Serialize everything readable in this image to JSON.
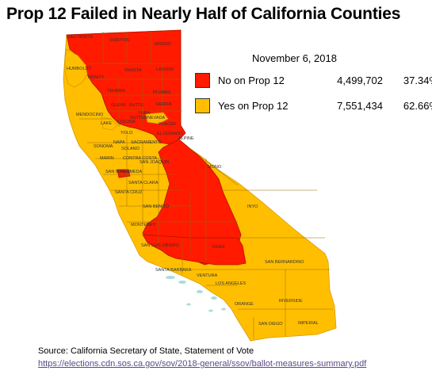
{
  "title": "Prop 12 Failed in Nearly Half of California Counties",
  "legend": {
    "date": "November 6, 2018",
    "no": {
      "label": "No on Prop 12",
      "count": "4,499,702",
      "percent": "37.34%",
      "color": "#ff1a00"
    },
    "yes": {
      "label": "Yes on Prop 12",
      "count": "7,551,434",
      "percent": "62.66%",
      "color": "#ffbf00"
    }
  },
  "source": "Source: California Secretary of State, Statement of Vote",
  "link": "https://elections.cdn.sos.ca.gov/sov/2018-general/ssov/ballot-measures-summary.pdf",
  "county_labels": {
    "del_norte": "DEL NORTE",
    "siskiyou": "SISKIYOU",
    "modoc": "MODOC",
    "humboldt": "HUMBOLDT",
    "trinity": "TRINITY",
    "shasta": "SHASTA",
    "lassen": "LASSEN",
    "tehama": "TEHAMA",
    "plumas": "PLUMAS",
    "mendocino": "MENDOCINO",
    "glenn": "GLENN",
    "butte": "BUTTE",
    "sierra": "SIERRA",
    "nevada": "NEVADA",
    "lake": "LAKE",
    "colusa": "COLUSA",
    "sutter": "SUTTER",
    "yuba": "YUBA",
    "placer": "PLACER",
    "yolo": "YOLO",
    "el_dorado": "EL DORADO",
    "alpine": "ALPINE",
    "sonoma": "SONOMA",
    "napa": "NAPA",
    "sacramento": "SACRAMENTO",
    "solano": "SOLANO",
    "marin": "MARIN",
    "contra_costa": "CONTRA COSTA",
    "san_joaquin": "SAN JOAQUIN",
    "mono": "MONO",
    "san_mateo": "SAN MATEO",
    "alameda": "ALAMEDA",
    "santa_clara": "SANTA CLARA",
    "santa_cruz": "SANTA CRUZ",
    "san_benito": "SAN BENITO",
    "inyo": "INYO",
    "monterey": "MONTEREY",
    "san_luis_obispo": "SAN LUIS OBISPO",
    "kern": "KERN",
    "san_bernardino": "SAN BERNARDINO",
    "santa_barbara": "SANTA BARBARA",
    "ventura": "VENTURA",
    "los_angeles": "LOS ANGELES",
    "orange": "ORANGE",
    "riverside": "RIVERSIDE",
    "san_diego": "SAN DIEGO",
    "imperial": "IMPERIAL"
  }
}
